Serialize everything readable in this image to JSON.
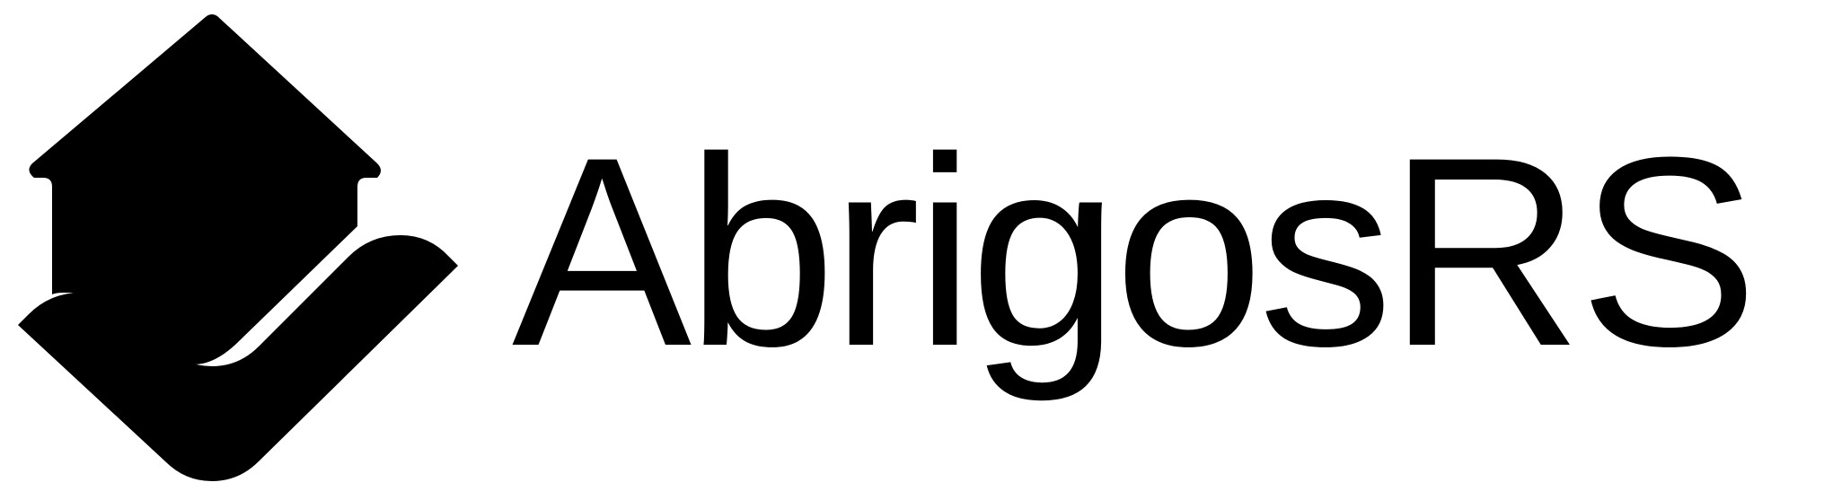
{
  "logo": {
    "brand_main": "Abrigos",
    "brand_suffix": "RS",
    "mark_icon": "house-roof-chevron-icon",
    "color": "#000000",
    "background": "#ffffff"
  }
}
